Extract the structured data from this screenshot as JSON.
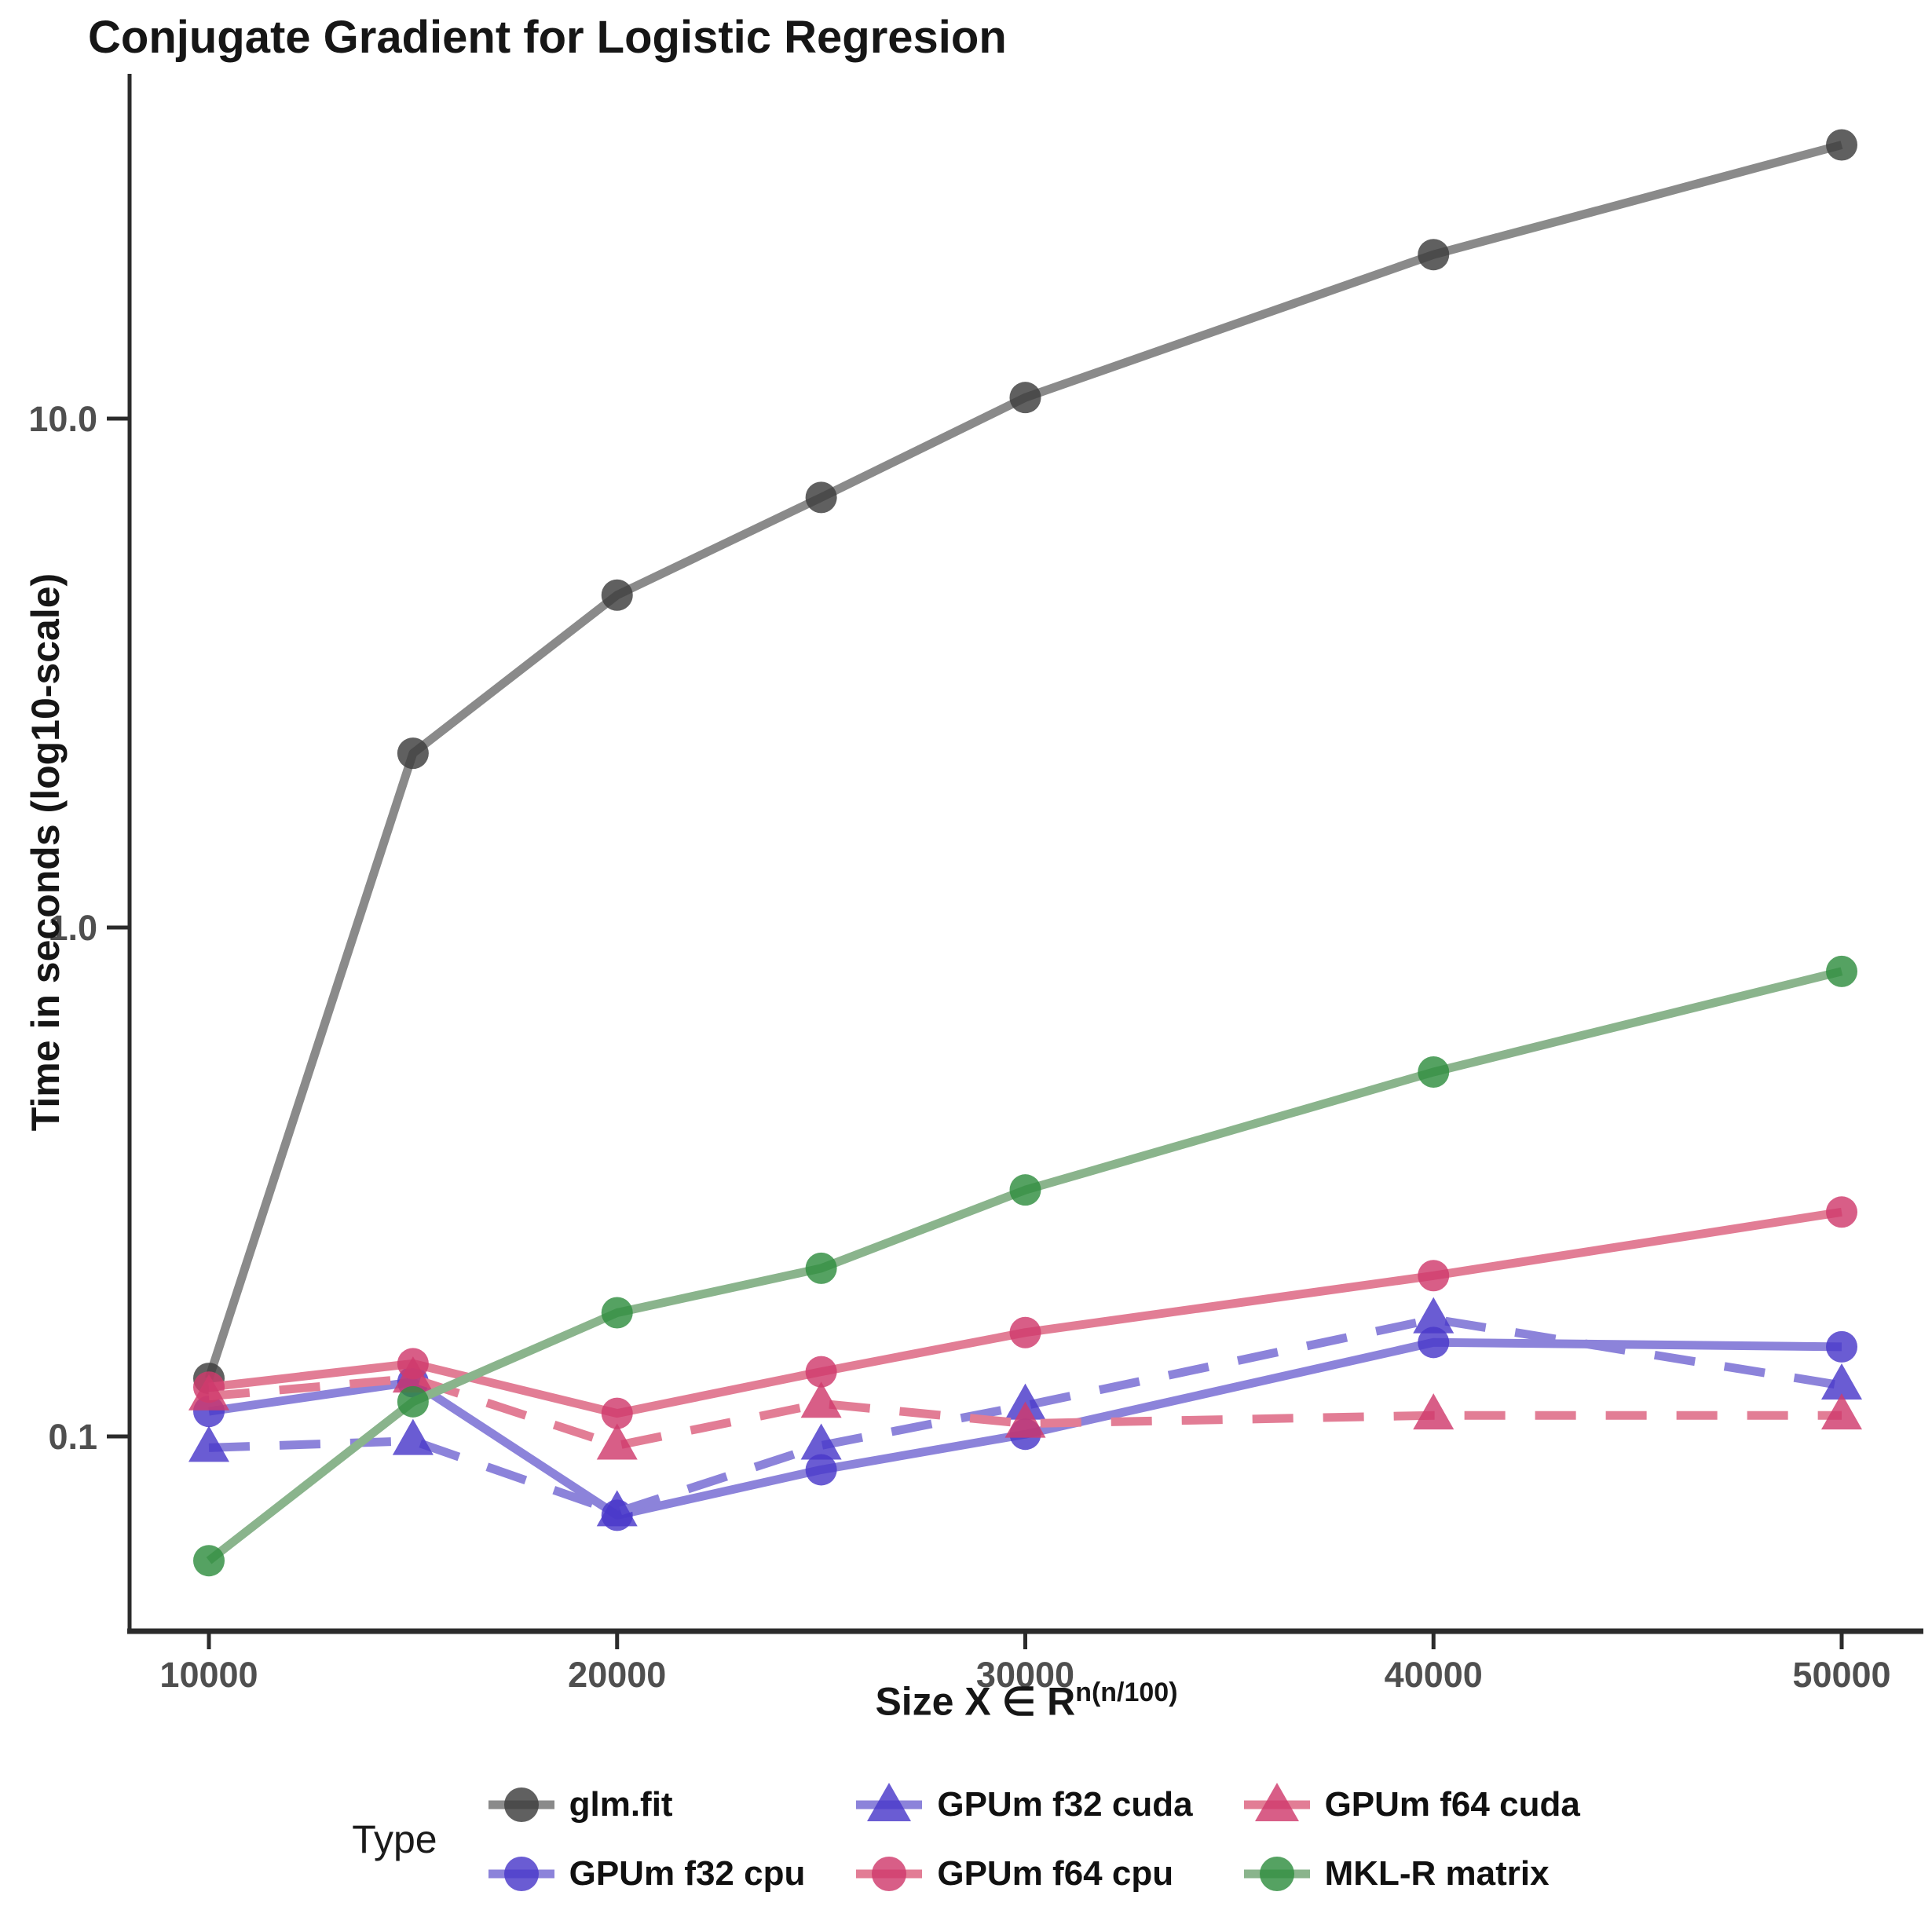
{
  "title": "Conjugate Gradient for Logistic Regresion",
  "axes": {
    "y": {
      "label": "Time in seconds (log10-scale)",
      "scale": "log10",
      "ticks": [
        {
          "label": "10.0",
          "value": 10
        },
        {
          "label": "1.0",
          "value": 1
        },
        {
          "label": "0.1",
          "value": 0.1
        }
      ]
    },
    "x": {
      "label_base": "Size  X ∈ R",
      "label_sup": "n(n/100)",
      "ticks": [
        {
          "label": "10000",
          "value": 10000
        },
        {
          "label": "20000",
          "value": 20000
        },
        {
          "label": "30000",
          "value": 30000
        },
        {
          "label": "40000",
          "value": 40000
        },
        {
          "label": "50000",
          "value": 50000
        }
      ]
    }
  },
  "legend": {
    "title": "Type",
    "position": "bottom",
    "column_order": [
      [
        0,
        1
      ],
      [
        2,
        3
      ],
      [
        4,
        5
      ]
    ]
  },
  "colors": {
    "axis_line": "#2b2b2b",
    "tick_text": "#4f4f4f",
    "gray_line": "#8a8a8a",
    "gray_point": "#3d3d3d",
    "blue_line": "#8c83da",
    "blue_point": "#4938c9",
    "pink_line": "#e27d95",
    "pink_point": "#cf3a6d",
    "green_line": "#8ab48c",
    "green_point": "#2f8e3f"
  },
  "chart_data": {
    "type": "line",
    "title": "Conjugate Gradient for Logistic Regresion",
    "xlabel": "Size X ∈ R^(n(n/100))",
    "ylabel": "Time in seconds (log10-scale)",
    "yscale": "log10",
    "xlim": [
      8000,
      52000
    ],
    "ylim": [
      0.045,
      40
    ],
    "grid": false,
    "x": [
      10000,
      15000,
      20000,
      25000,
      30000,
      40000,
      50000
    ],
    "series": [
      {
        "name": "glm.fit",
        "marker": "circle",
        "line": "solid",
        "color": "#8a8a8a",
        "point_color": "#3d3d3d",
        "values": [
          0.13,
          2.2,
          4.5,
          7.0,
          11.0,
          21.0,
          34.5
        ]
      },
      {
        "name": "GPUm f32 cpu",
        "marker": "circle",
        "line": "solid",
        "color": "#8c83da",
        "point_color": "#4938c9",
        "values": [
          0.112,
          0.128,
          0.07,
          0.086,
          0.101,
          0.153,
          0.15
        ]
      },
      {
        "name": "GPUm f32 cuda",
        "marker": "triangle",
        "line": "dashed",
        "color": "#8c83da",
        "point_color": "#4938c9",
        "values": [
          0.095,
          0.098,
          0.071,
          0.096,
          0.115,
          0.17,
          0.126
        ]
      },
      {
        "name": "GPUm f64 cpu",
        "marker": "circle",
        "line": "solid",
        "color": "#e27d95",
        "point_color": "#cf3a6d",
        "values": [
          0.125,
          0.139,
          0.111,
          0.134,
          0.16,
          0.207,
          0.276
        ]
      },
      {
        "name": "GPUm f64 cuda",
        "marker": "triangle",
        "line": "dashed",
        "color": "#e27d95",
        "point_color": "#cf3a6d",
        "values": [
          0.12,
          0.13,
          0.096,
          0.116,
          0.106,
          0.11,
          0.11
        ]
      },
      {
        "name": "MKL-R matrix",
        "marker": "circle",
        "line": "solid",
        "color": "#8ab48c",
        "point_color": "#2f8e3f",
        "values": [
          0.057,
          0.117,
          0.175,
          0.214,
          0.305,
          0.52,
          0.82
        ]
      }
    ]
  }
}
